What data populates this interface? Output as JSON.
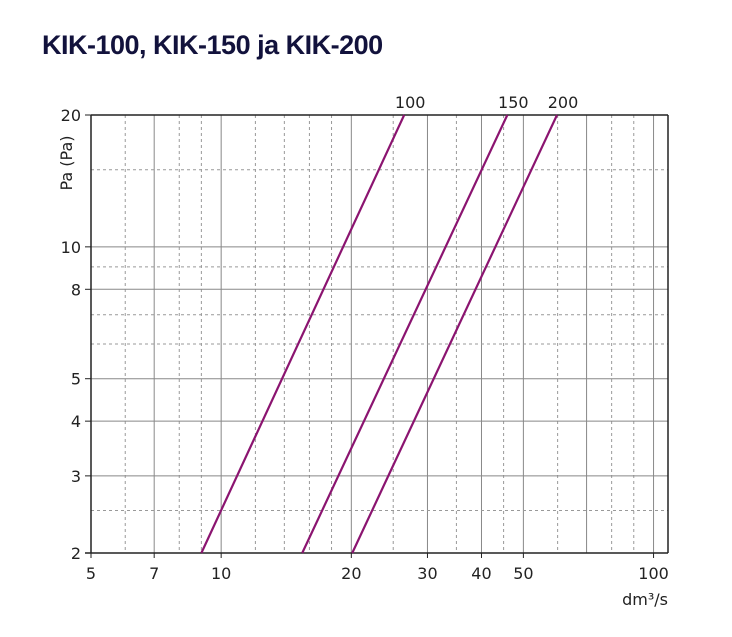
{
  "title": "KIK-100, KIK-150 ja KIK-200",
  "chart_data": {
    "type": "line",
    "title": "KIK-100, KIK-150 ja KIK-200",
    "xlabel": "dm³/s",
    "ylabel": "Pa (Pa)",
    "xscale": "log",
    "yscale": "log",
    "xlim": [
      5,
      108
    ],
    "ylim": [
      2,
      20
    ],
    "grid": true,
    "x_ticks": [
      5,
      7,
      10,
      20,
      30,
      40,
      50,
      100
    ],
    "x_tick_labels": [
      "5",
      "7",
      "10",
      "20",
      "30",
      "40",
      "50",
      "100"
    ],
    "y_ticks": [
      2,
      3,
      4,
      5,
      8,
      10,
      20
    ],
    "y_tick_labels": [
      "2",
      "3",
      "4",
      "5",
      "8",
      "10",
      "20"
    ],
    "line_color": "#8b1470",
    "series": [
      {
        "name": "100",
        "x": [
          9.0,
          26.5
        ],
        "y": [
          2,
          20
        ]
      },
      {
        "name": "150",
        "x": [
          15.4,
          45.9
        ],
        "y": [
          2,
          20
        ]
      },
      {
        "name": "200",
        "x": [
          20.1,
          59.8
        ],
        "y": [
          2,
          20
        ]
      }
    ]
  }
}
